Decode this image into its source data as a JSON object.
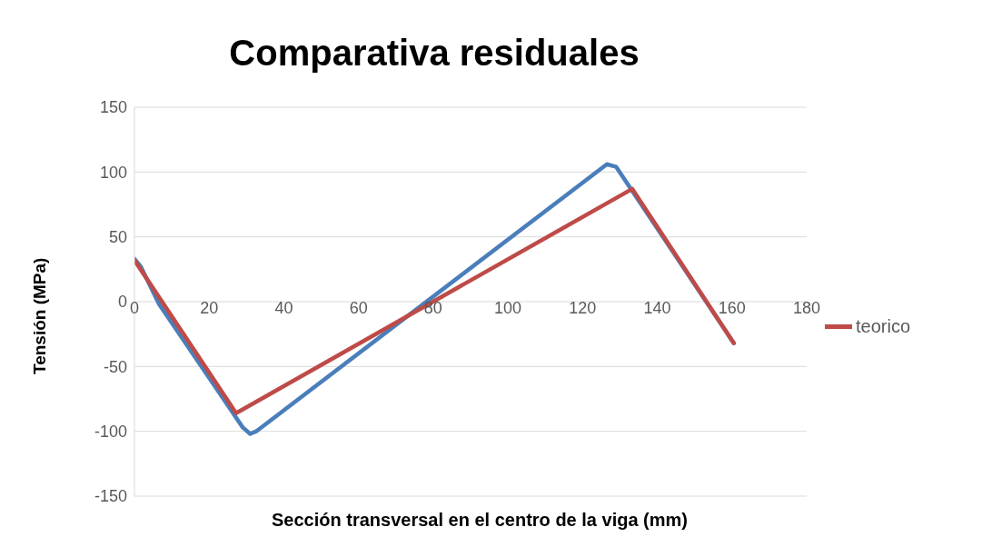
{
  "chart_data": {
    "type": "line",
    "title": "Comparativa residuales",
    "xlabel": "Sección transversal en el centro de la viga (mm)",
    "ylabel": "Tensión (MPa)",
    "series": [
      {
        "color": "#4a7ebb",
        "x": [
          0,
          1.7,
          6.6,
          29,
          31,
          32.6,
          126.5,
          129,
          160.5
        ],
        "values": [
          33,
          27,
          -2,
          -97,
          -102,
          -100,
          106,
          104,
          -32
        ]
      },
      {
        "name": "teorico",
        "color": "#be4b48",
        "x": [
          0,
          27.2,
          133.3,
          160.5
        ],
        "values": [
          32,
          -86,
          87,
          -32
        ]
      }
    ],
    "xlim": [
      0,
      180
    ],
    "xticks": [
      0,
      20,
      40,
      60,
      80,
      100,
      120,
      140,
      160,
      180
    ],
    "ylim": [
      -150,
      150
    ],
    "yticks": [
      -150,
      -100,
      -50,
      0,
      50,
      100,
      150
    ],
    "grid": "y",
    "legend": "right",
    "marker": "none",
    "line_style": "solid"
  }
}
